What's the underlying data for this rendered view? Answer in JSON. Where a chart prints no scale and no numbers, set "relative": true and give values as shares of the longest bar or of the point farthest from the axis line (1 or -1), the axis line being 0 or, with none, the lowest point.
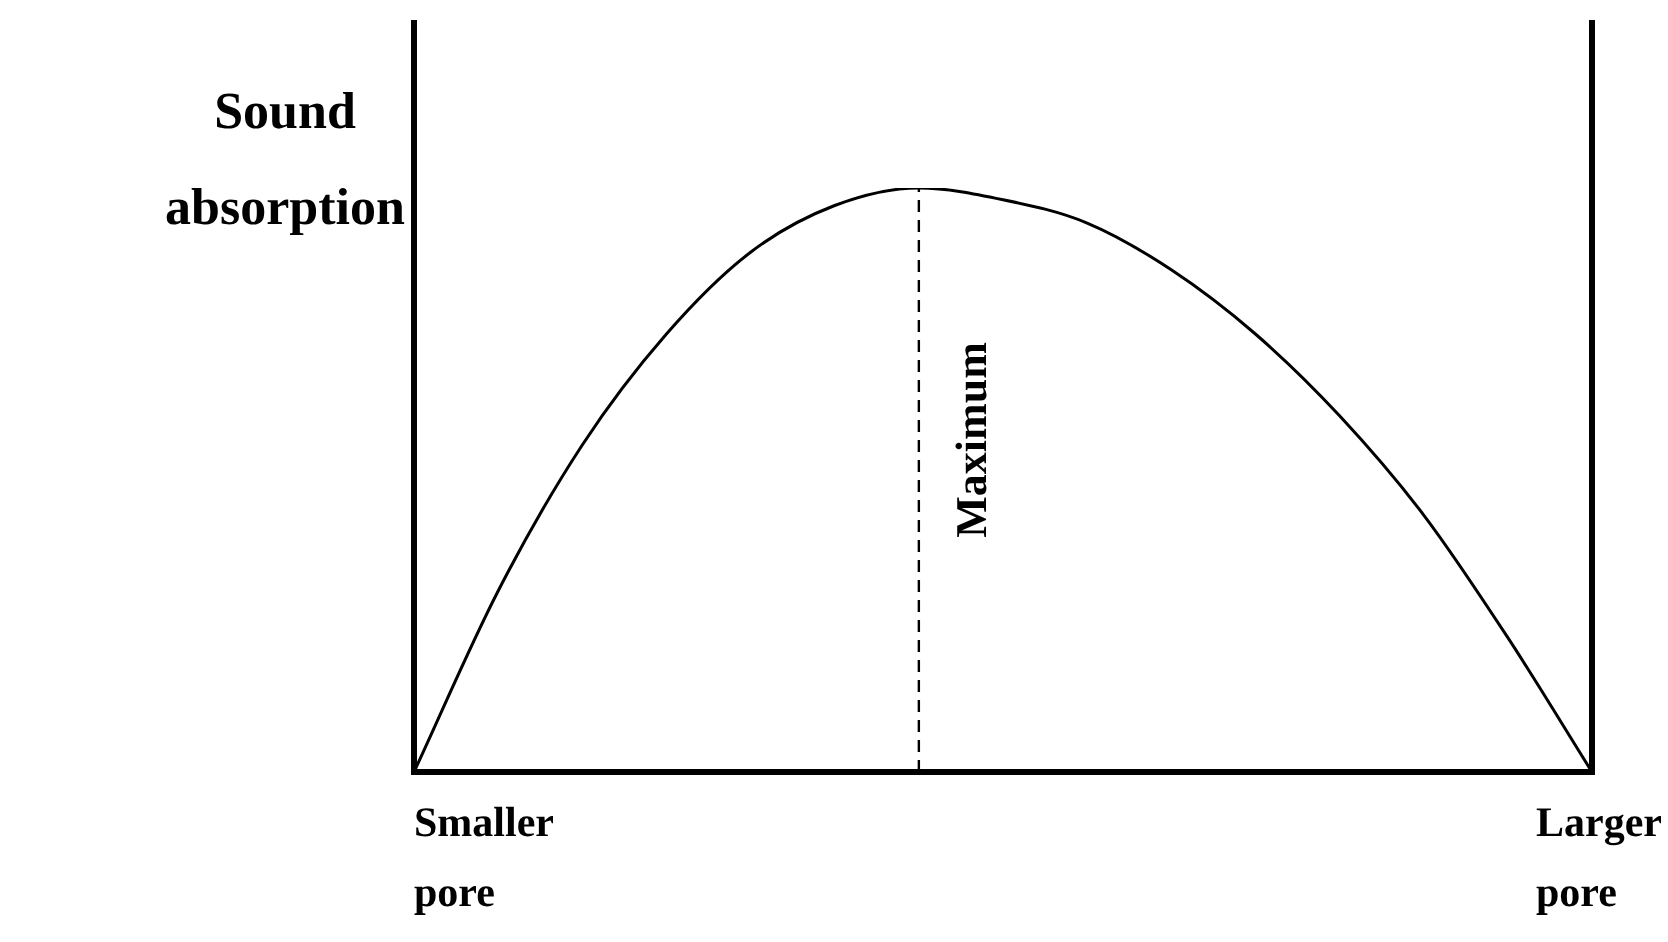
{
  "chart_data": {
    "type": "line",
    "relative": true,
    "ylabel": "Sound absorption",
    "categories": [
      null,
      null,
      null,
      null,
      null,
      null,
      null,
      null,
      null,
      null,
      null,
      null,
      null,
      null,
      null
    ],
    "series": [
      {
        "color": "#000000",
        "values": [
          0,
          0.31,
          0.56,
          0.75,
          0.89,
          0.97,
          1,
          0.98,
          0.94,
          0.86,
          0.75,
          0.61,
          0.44,
          0.23,
          0
        ]
      }
    ],
    "annotations": [
      "Maximum",
      "Smaller pore",
      "Larger pore"
    ],
    "legend": false
  }
}
